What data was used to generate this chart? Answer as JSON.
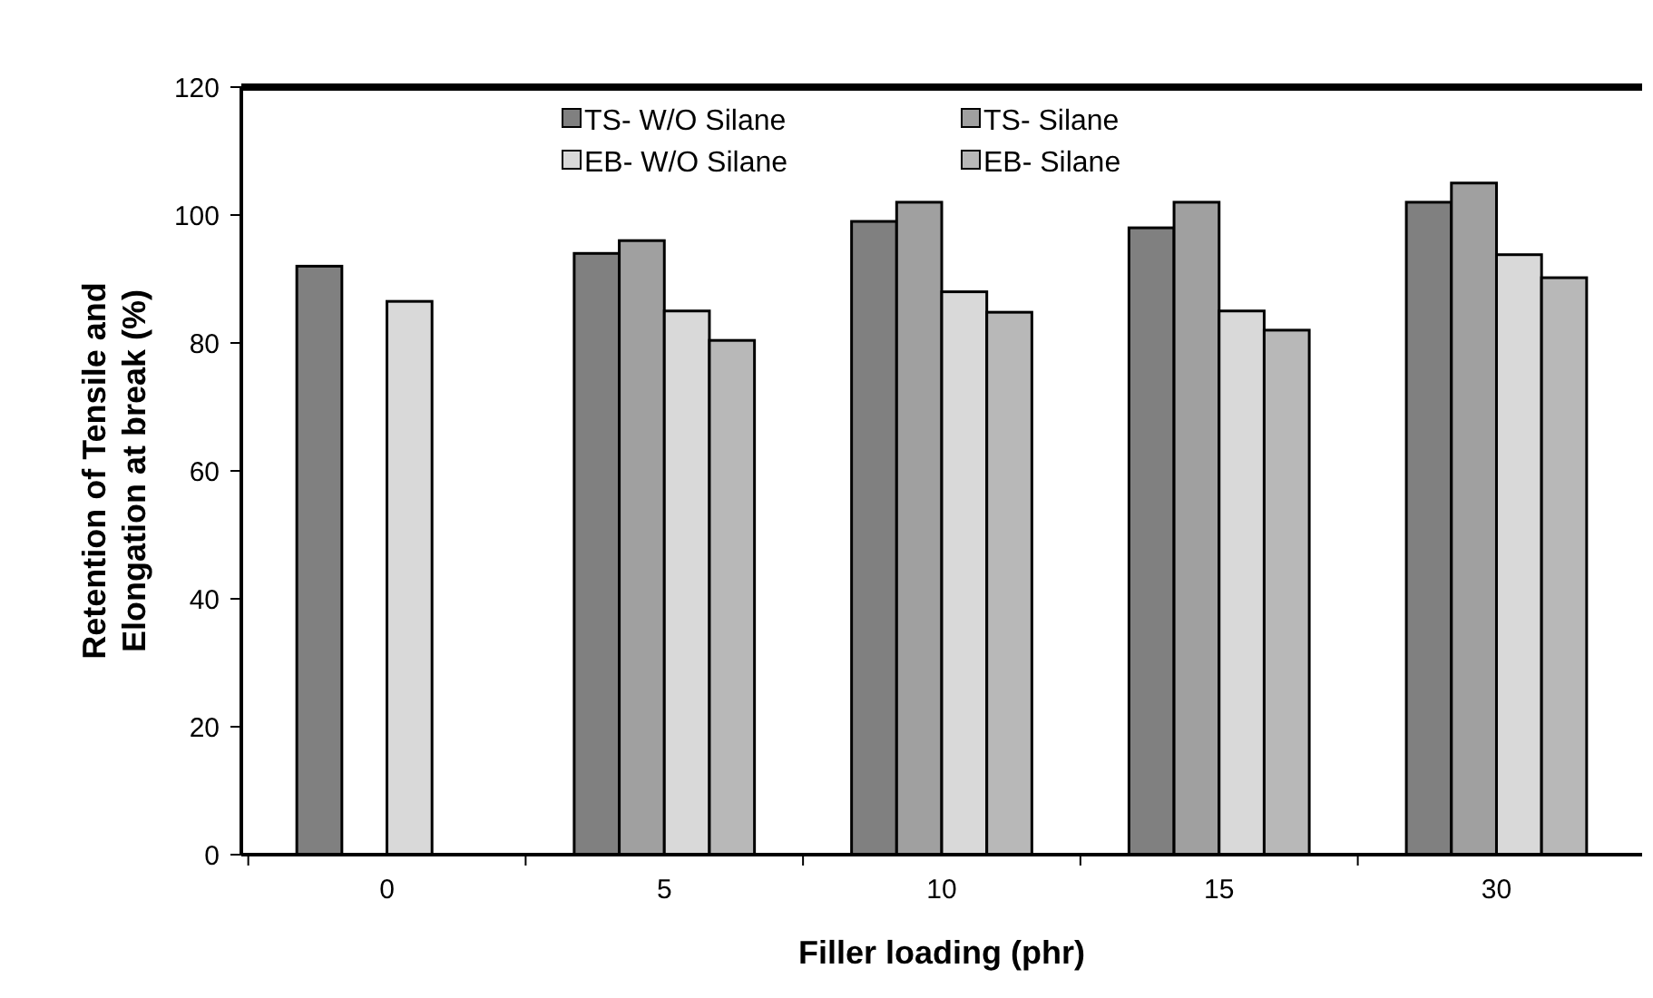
{
  "chart_data": {
    "type": "bar",
    "xlabel": "Filler loading (phr)",
    "ylabel": "Retention of Tensile and Elongation at break (%)",
    "categories": [
      "0",
      "5",
      "10",
      "15",
      "30"
    ],
    "ylim": [
      0,
      120
    ],
    "yticks": [
      0,
      20,
      40,
      60,
      80,
      100,
      120
    ],
    "legend": "top",
    "grid": false,
    "series": [
      {
        "name": "TS- W/O Silane",
        "color": "#808080",
        "values": [
          92,
          94,
          99,
          98,
          102
        ]
      },
      {
        "name": "TS- Silane",
        "color": "#a0a0a0",
        "values": [
          0,
          96,
          102,
          102,
          105
        ]
      },
      {
        "name": "EB- W/O Silane",
        "color": "#d9d9d9",
        "values": [
          86.5,
          85,
          88,
          85,
          93.8
        ]
      },
      {
        "name": "EB- Silane",
        "color": "#b8b8b8",
        "values": [
          0,
          80.4,
          84.8,
          82,
          90.2
        ]
      }
    ]
  }
}
